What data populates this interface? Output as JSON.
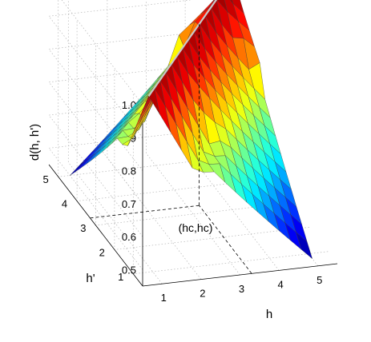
{
  "chart_data": {
    "type": "surface",
    "title": "",
    "xlabel": "h",
    "ylabel": "h'",
    "zlabel": "d(h, h')",
    "x_ticks": [
      "1",
      "2",
      "3",
      "4",
      "5"
    ],
    "y_ticks": [
      "1",
      "2",
      "3",
      "4",
      "5"
    ],
    "z_ticks": [
      "0.5",
      "0.6",
      "0.7",
      "0.8",
      "0.9",
      "1.0"
    ],
    "xlim": [
      0.5,
      5.5
    ],
    "ylim": [
      0.5,
      5.5
    ],
    "zlim": [
      0.45,
      1.0
    ],
    "grid": true,
    "colormap": "jet",
    "critical_point": {
      "label": "(hc,hc)",
      "h": 3.3,
      "h_prime": 3.3
    },
    "surface": {
      "h_range": [
        0.8,
        5.0
      ],
      "h_prime_range": [
        0.8,
        5.0
      ],
      "ridge_value": 1.0,
      "corner_min_value": 0.45,
      "cross_section_value_at_h_equals_hc": 0.75
    },
    "colors": {
      "ridge_line": "#c8c8c8",
      "grid": "#b4b4b4",
      "dash": "#000000"
    }
  }
}
